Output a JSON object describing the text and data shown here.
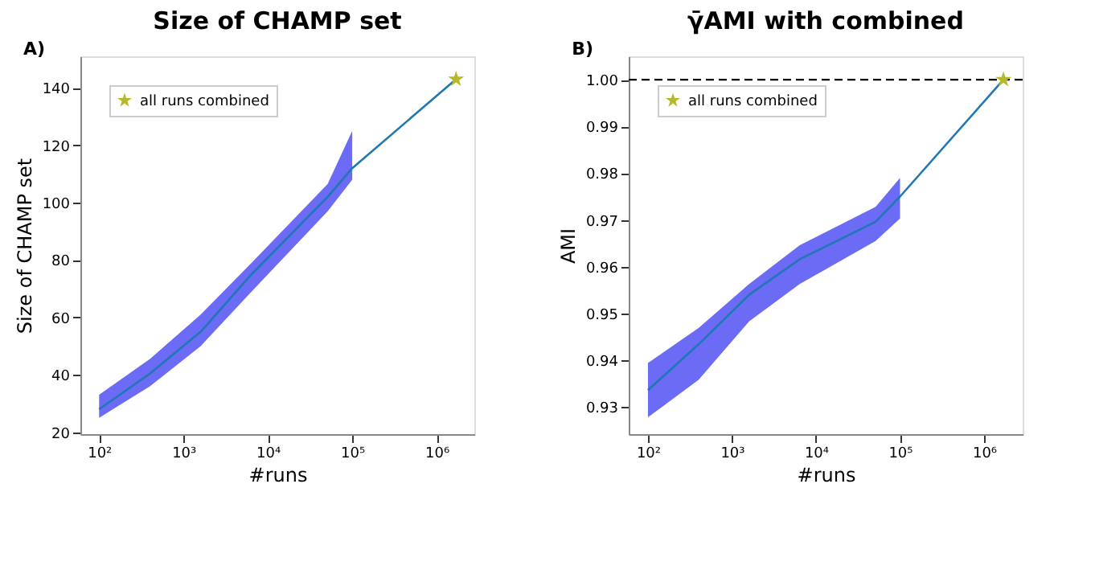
{
  "chart_data": [
    {
      "type": "line",
      "title": "Size of CHAMP set",
      "xlabel": "#runs",
      "ylabel": "Size of CHAMP set",
      "annotations": [
        "A)"
      ],
      "log": "x",
      "grid": false,
      "legend": "top left",
      "xlim": [
        60,
        2800000
      ],
      "xticks": [
        {
          "value": 100,
          "label": "10²"
        },
        {
          "value": 1000,
          "label": "10³"
        },
        {
          "value": 10000,
          "label": "10⁴"
        },
        {
          "value": 100000,
          "label": "10⁵"
        },
        {
          "value": 1000000,
          "label": "10⁶"
        }
      ],
      "ylim": [
        19.3,
        151
      ],
      "yticks": [
        20,
        40,
        60,
        80,
        100,
        120,
        140
      ],
      "series": [
        {
          "color": "#1f77b4",
          "x": [
            100,
            400,
            1600,
            6400,
            51200,
            100000,
            1700000
          ],
          "values": [
            28,
            40.4,
            55,
            75,
            102,
            112,
            143
          ],
          "lower": [
            25,
            36,
            50,
            69,
            97,
            108,
            null
          ],
          "upper": [
            33,
            45.5,
            61,
            79,
            106.5,
            125,
            null
          ]
        },
        {
          "type": "scatter",
          "name": "all runs combined",
          "color": "#b5b82a",
          "marker": "star",
          "x": [
            1700000
          ],
          "values": [
            143
          ]
        }
      ]
    },
    {
      "type": "line",
      "title": "γ̄AMI with combined",
      "xlabel": "#runs",
      "ylabel": "AMI",
      "annotations": [
        "B)"
      ],
      "log": "x",
      "grid": false,
      "legend": "top left",
      "xlim": [
        59,
        2880000
      ],
      "xticks": [
        {
          "value": 100,
          "label": "10²"
        },
        {
          "value": 1000,
          "label": "10³"
        },
        {
          "value": 10000,
          "label": "10⁴"
        },
        {
          "value": 100000,
          "label": "10⁵"
        },
        {
          "value": 1000000,
          "label": "10⁶"
        }
      ],
      "ylim": [
        0.9242,
        1.005
      ],
      "yticks": [
        {
          "value": 0.93,
          "label": "0.93"
        },
        {
          "value": 0.94,
          "label": "0.94"
        },
        {
          "value": 0.95,
          "label": "0.95"
        },
        {
          "value": 0.96,
          "label": "0.96"
        },
        {
          "value": 0.97,
          "label": "0.97"
        },
        {
          "value": 0.98,
          "label": "0.98"
        },
        {
          "value": 0.99,
          "label": "0.99"
        },
        {
          "value": 1.0,
          "label": "1.00"
        }
      ],
      "ref_lines": [
        {
          "axis": "y",
          "value": 1.0,
          "color": "#000000",
          "line_style": "dashed"
        }
      ],
      "series": [
        {
          "color": "#1f77b4",
          "x": [
            100,
            400,
            1600,
            6400,
            51200,
            100000,
            1700000
          ],
          "values": [
            0.9336,
            0.9434,
            0.954,
            0.9616,
            0.9696,
            0.975,
            1.0
          ],
          "lower": [
            0.9278,
            0.9358,
            0.9483,
            0.9563,
            0.9655,
            0.9703,
            null
          ],
          "upper": [
            0.9394,
            0.9469,
            0.9563,
            0.9646,
            0.9728,
            0.979,
            null
          ]
        },
        {
          "type": "scatter",
          "name": "all runs combined",
          "color": "#b5b82a",
          "marker": "star",
          "x": [
            1700000
          ],
          "values": [
            1.0
          ]
        }
      ]
    }
  ]
}
